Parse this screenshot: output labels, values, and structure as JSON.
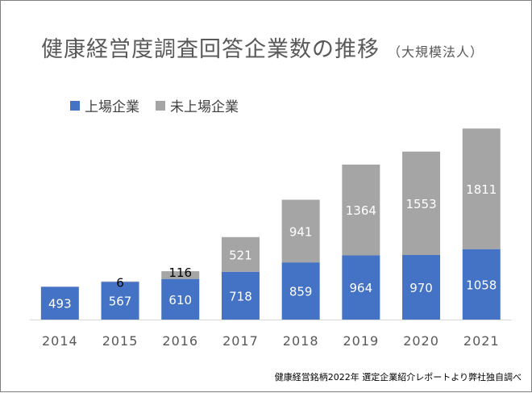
{
  "title": "健康経営度調査回答企業数の推移",
  "subtitle": "（大規模法人）",
  "source_note": "健康経営銘柄2022年 選定企業紹介レポートより弊社独自調べ",
  "colors": {
    "listed": "#4472C4",
    "unlisted": "#A5A5A5",
    "axis": "#d9d9d9",
    "tick_text": "#595959"
  },
  "chart_data": {
    "type": "bar",
    "stacked": true,
    "categories": [
      "2014",
      "2015",
      "2016",
      "2017",
      "2018",
      "2019",
      "2020",
      "2021"
    ],
    "series": [
      {
        "name": "上場企業",
        "values": [
          493,
          567,
          610,
          718,
          859,
          964,
          970,
          1058
        ]
      },
      {
        "name": "未上場企業",
        "values": [
          0,
          6,
          116,
          521,
          941,
          1364,
          1553,
          1811
        ]
      }
    ],
    "ylim": [
      0,
      3000
    ],
    "grid": false,
    "legend_position": "top-left"
  }
}
